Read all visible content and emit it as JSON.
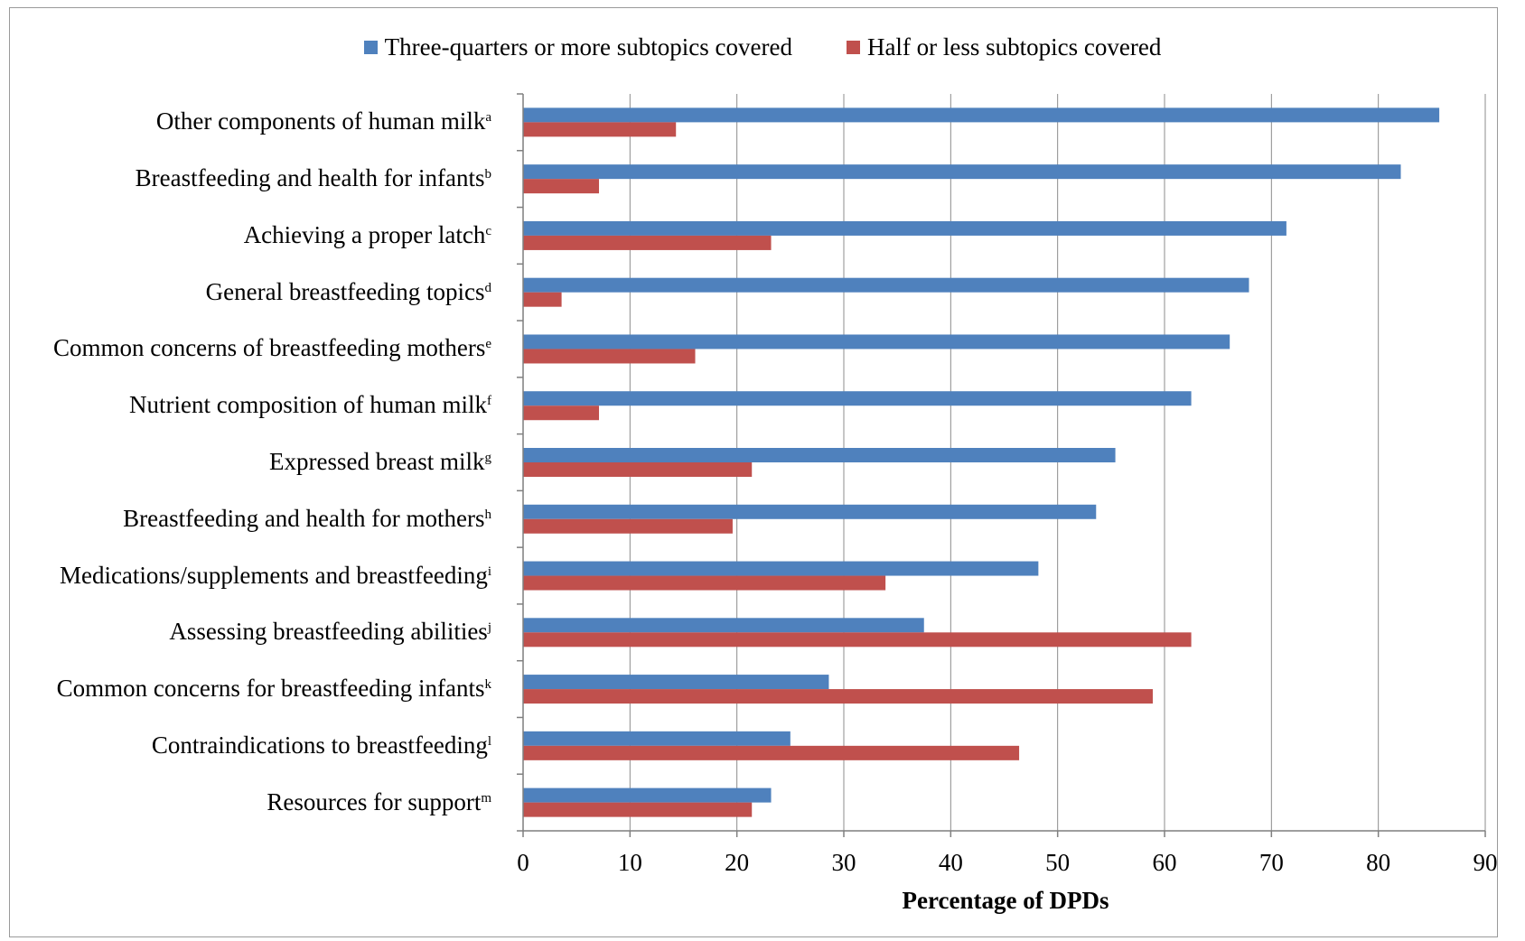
{
  "chart_data": {
    "type": "bar",
    "orientation": "horizontal",
    "categories": [
      "Other components of human milk",
      "Breastfeeding and health for infants",
      "Achieving a proper latch",
      "General breastfeeding topics",
      "Common concerns of breastfeeding mothers",
      "Nutrient composition of human milk",
      "Expressed breast milk",
      "Breastfeeding and health for mothers",
      "Medications/supplements and breastfeeding",
      "Assessing breastfeeding abilities",
      "Common concerns for breastfeeding infants",
      "Contraindications to breastfeeding",
      "Resources for support"
    ],
    "category_superscripts": [
      "a",
      "b",
      "c",
      "d",
      "e",
      "f",
      "g",
      "h",
      "i",
      "j",
      "k",
      "l",
      "m"
    ],
    "series": [
      {
        "name": "Three-quarters or more subtopics covered",
        "color": "#4f81bd",
        "values": [
          85.7,
          82.1,
          71.4,
          67.9,
          66.1,
          62.5,
          55.4,
          53.6,
          48.2,
          37.5,
          28.6,
          25.0,
          23.2
        ]
      },
      {
        "name": "Half or less subtopics covered",
        "color": "#c0504d",
        "values": [
          14.3,
          7.1,
          23.2,
          3.6,
          16.1,
          7.1,
          21.4,
          19.6,
          33.9,
          62.5,
          58.9,
          46.4,
          21.4
        ]
      }
    ],
    "xlabel": "Percentage of DPDs",
    "xlim": [
      0,
      90
    ],
    "xticks": [
      "0",
      "10",
      "20",
      "30",
      "40",
      "50",
      "60",
      "70",
      "80",
      "90"
    ],
    "grid": true,
    "legend": "top-center"
  }
}
